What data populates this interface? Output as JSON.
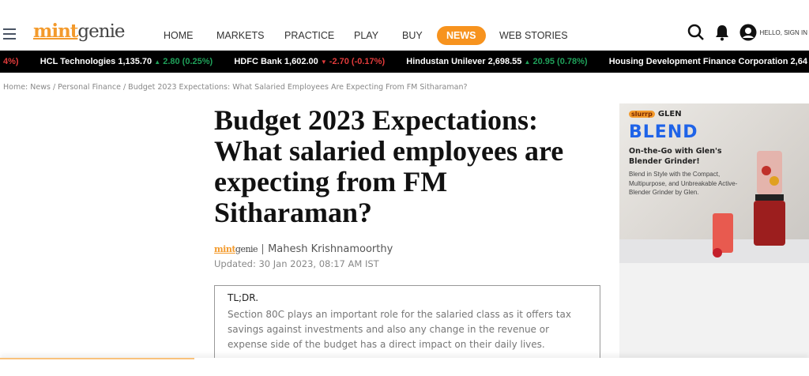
{
  "header": {
    "logo": {
      "mint": "mint",
      "genie": "genie"
    },
    "nav": [
      "HOME",
      "MARKETS",
      "PRACTICE",
      "PLAY",
      "BUY",
      "NEWS",
      "WEB STORIES"
    ],
    "active_nav": "NEWS",
    "accent": "#f7931e",
    "signin": "HELLO, SIGN IN"
  },
  "ticker": [
    {
      "name": "",
      "price": "",
      "change": "4%)",
      "dir": "down"
    },
    {
      "name": "HCL Technologies",
      "price": "1,135.70",
      "change": "2.80 (0.25%)",
      "dir": "up"
    },
    {
      "name": "HDFC Bank",
      "price": "1,602.00",
      "change": "-2.70 (-0.17%)",
      "dir": "down"
    },
    {
      "name": "Hindustan Unilever",
      "price": "2,698.55",
      "change": "20.95 (0.78%)",
      "dir": "up"
    },
    {
      "name": "Housing Development Finance Corporation",
      "price": "2,64",
      "change": "",
      "dir": ""
    }
  ],
  "breadcrumb": "Home: News / Personal Finance / Budget 2023 Expectations: What Salaried Employees Are Expecting From FM Sitharaman?",
  "article": {
    "title": "Budget 2023 Expectations: What salaried employees are expecting from FM Sitharaman?",
    "source_mint": "mint",
    "source_genie": "genie",
    "author": "Mahesh Krishnamoorthy",
    "updated": "Updated: 30 Jan 2023, 08:17 AM IST",
    "tldr_title": "TL;DR.",
    "tldr_text": "Section 80C plays an important role for the salaried class as it offers tax savings against investments and also any change in the revenue or expense side of the budget has a direct impact on their daily lives."
  },
  "ad": {
    "brand1": "slurrp",
    "brand2": "GLEN",
    "headline": "BLEND",
    "sub": "On-the-Go with Glen's Blender Grinder!",
    "desc": "Blend in Style with the Compact, Multipurpose, and Unbreakable Active-Blender Grinder by Glen."
  },
  "reading_progress_percent": 24
}
